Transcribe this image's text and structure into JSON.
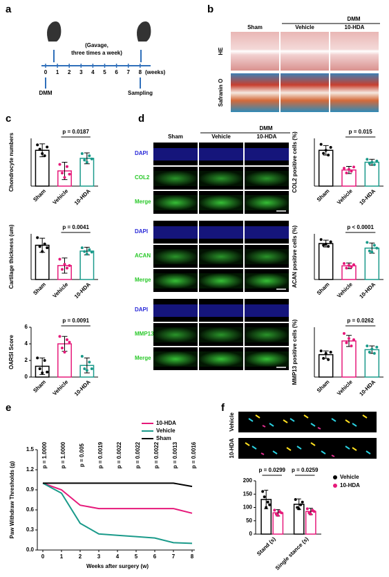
{
  "panel_labels": [
    "a",
    "b",
    "c",
    "d",
    "e",
    "f"
  ],
  "timeline": {
    "weeks": [
      "0",
      "1",
      "2",
      "3",
      "4",
      "5",
      "6",
      "7",
      "8"
    ],
    "unit": "(weeks)",
    "treatment": "(Gavage,",
    "treatment2": "three times a week)",
    "start": "DMM",
    "end": "Sampling"
  },
  "histology": {
    "group": "DMM",
    "columns": [
      "Sham",
      "Vehicle",
      "10-HDA"
    ],
    "rows": [
      "HE",
      "Safranin O"
    ]
  },
  "staining": {
    "group": "DMM",
    "columns": [
      "Sham",
      "Vehicle",
      "10-HDA"
    ],
    "blocks": [
      [
        "DAPI",
        "COL2",
        "Merge"
      ],
      [
        "DAPI",
        "ACAN",
        "Merge"
      ],
      [
        "DAPI",
        "MMP13",
        "Merge"
      ]
    ]
  },
  "chart_data": [
    {
      "type": "bar",
      "ylabel": "Chondrocyte numbers",
      "categories": [
        "Sham",
        "Vehicle",
        "10-HDA"
      ],
      "values": [
        165,
        70,
        128
      ],
      "errors": [
        30,
        40,
        25
      ],
      "points": [
        [
          190,
          170,
          150,
          140,
          180
        ],
        [
          100,
          60,
          40,
          90,
          55
        ],
        [
          150,
          120,
          110,
          140,
          125
        ]
      ],
      "colors": [
        "#000000",
        "#e6197a",
        "#1a9a8a"
      ],
      "ylim": [
        0,
        220
      ],
      "annotation": "p = 0.0187"
    },
    {
      "type": "bar",
      "ylabel": "Cartilage thickness (um)",
      "categories": [
        "Sham",
        "Vehicle",
        "10-HDA"
      ],
      "values": [
        135,
        55,
        112
      ],
      "errors": [
        28,
        30,
        15
      ],
      "points": [
        [
          165,
          130,
          110,
          140,
          125
        ],
        [
          80,
          40,
          60,
          45,
          55
        ],
        [
          125,
          110,
          100,
          118,
          108
        ]
      ],
      "colors": [
        "#000000",
        "#e6197a",
        "#1a9a8a"
      ],
      "ylim": [
        0,
        180
      ],
      "annotation": "p = 0.0041"
    },
    {
      "type": "bar",
      "ylabel": "OARSI Score",
      "categories": [
        "Sham",
        "Vehicle",
        "10-HDA"
      ],
      "values": [
        1.3,
        4,
        1.4
      ],
      "errors": [
        1,
        0.9,
        0.9
      ],
      "points": [
        [
          2.3,
          1,
          0.5,
          2,
          0.6
        ],
        [
          4.9,
          3.5,
          3,
          4.5,
          4.2
        ],
        [
          2.5,
          1,
          0.8,
          1.8,
          1
        ]
      ],
      "colors": [
        "#000000",
        "#e6197a",
        "#1a9a8a"
      ],
      "ylim": [
        0,
        6
      ],
      "yticks": [
        0,
        2,
        4,
        6
      ],
      "annotation": "p = 0.0091"
    },
    {
      "type": "bar",
      "ylabel": "COL2 positive cells (%)",
      "categories": [
        "Sham",
        "Vehicle",
        "10-HDA"
      ],
      "values": [
        60,
        27,
        40
      ],
      "errors": [
        8,
        6,
        5
      ],
      "points": [
        [
          70,
          55,
          60,
          52,
          65
        ],
        [
          30,
          22,
          28,
          25,
          32
        ],
        [
          45,
          38,
          40,
          36,
          42
        ]
      ],
      "colors": [
        "#000000",
        "#e6197a",
        "#1a9a8a"
      ],
      "ylim": [
        0,
        80
      ],
      "annotation": "p = 0.015"
    },
    {
      "type": "bar",
      "ylabel": "ACAN positive cells (%)",
      "categories": [
        "Sham",
        "Vehicle",
        "10-HDA"
      ],
      "values": [
        63,
        24,
        55
      ],
      "errors": [
        6,
        5,
        9
      ],
      "points": [
        [
          70,
          60,
          62,
          58,
          66
        ],
        [
          28,
          20,
          25,
          22,
          26
        ],
        [
          65,
          50,
          48,
          60,
          55
        ]
      ],
      "colors": [
        "#000000",
        "#e6197a",
        "#1a9a8a"
      ],
      "ylim": [
        0,
        80
      ],
      "annotation": "p < 0.0001"
    },
    {
      "type": "bar",
      "ylabel": "MMP13 positive cells (%)",
      "categories": [
        "Sham",
        "Vehicle",
        "10-HDA"
      ],
      "values": [
        36,
        58,
        44
      ],
      "errors": [
        6,
        9,
        6
      ],
      "points": [
        [
          42,
          30,
          38,
          28,
          40
        ],
        [
          70,
          55,
          62,
          50,
          60
        ],
        [
          50,
          40,
          45,
          38,
          48
        ]
      ],
      "colors": [
        "#000000",
        "#e6197a",
        "#1a9a8a"
      ],
      "ylim": [
        0,
        80
      ],
      "annotation": "p = 0.0262"
    },
    {
      "type": "line",
      "ylabel": "Paw Withdraw Thresholds (g)",
      "xlabel": "Weeks after surgery (w)",
      "x": [
        0,
        1,
        2,
        3,
        4,
        5,
        6,
        7,
        8
      ],
      "xlim": [
        0,
        8
      ],
      "xticks": [
        0,
        1,
        2,
        3,
        4,
        5,
        6,
        7,
        8
      ],
      "ylim": [
        0,
        1.5
      ],
      "yticks": [
        {
          "value": 0,
          "label": "0.0"
        },
        0.3,
        0.6,
        0.9,
        1.2,
        1.5
      ],
      "series": [
        {
          "name": "10-HDA",
          "color": "#e6197a",
          "values": [
            1,
            0.9,
            0.67,
            0.62,
            0.62,
            0.62,
            0.62,
            0.62,
            0.55
          ]
        },
        {
          "name": "Vehicle",
          "color": "#1a9a8a",
          "values": [
            1,
            0.85,
            0.4,
            0.24,
            0.22,
            0.2,
            0.18,
            0.11,
            0.1
          ]
        },
        {
          "name": "Sham",
          "color": "#000000",
          "values": [
            1,
            1,
            1,
            1,
            1,
            1,
            1,
            1,
            0.95
          ]
        }
      ],
      "annotations": [
        "p = 1.0000",
        "p = 1.0000",
        "p = 0.005",
        "p = 0.0019",
        "p = 0.0022",
        "p = 0.0022",
        "p = 0.0022",
        "p = 0.0013",
        "p = 0.0016"
      ]
    },
    {
      "type": "groupbar",
      "categories": [
        "Stand (s)",
        "Single stance (s)"
      ],
      "ylim": [
        0,
        200
      ],
      "yticks": [
        0,
        50,
        100,
        150,
        200
      ],
      "series": [
        {
          "name": "Vehicle",
          "color": "#000000",
          "values": [
            130,
            112
          ],
          "errors": [
            35,
            20
          ],
          "points": [
            [
              160,
              140,
              100,
              120,
              110
            ],
            [
              130,
              100,
              95,
              110,
              120
            ]
          ]
        },
        {
          "name": "10-HDA",
          "color": "#e6197a",
          "values": [
            80,
            85
          ],
          "errors": [
            12,
            12
          ],
          "points": [
            [
              90,
              75,
              70,
              85,
              80
            ],
            [
              95,
              80,
              75,
              90,
              85
            ]
          ]
        }
      ],
      "annotations": [
        "p = 0.0299",
        "p = 0.0259"
      ],
      "images": [
        "Vehicle",
        "10-HDA"
      ]
    }
  ]
}
